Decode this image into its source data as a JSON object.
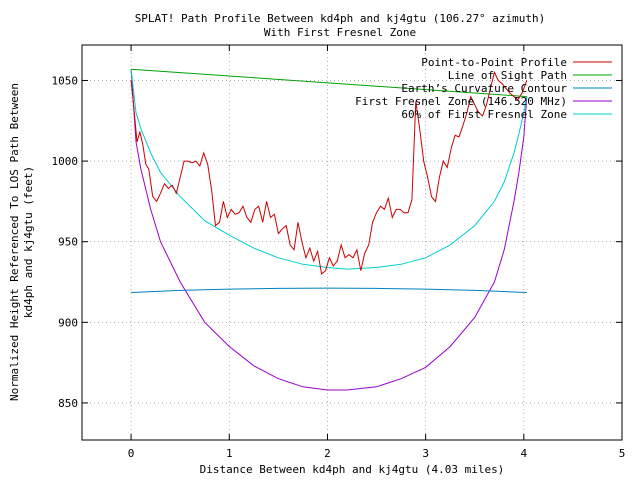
{
  "chart_data": {
    "type": "line",
    "title": "SPLAT! Path Profile Between kd4ph and kj4gtu (106.27° azimuth)",
    "subtitle": "With First Fresnel Zone",
    "xlabel": "Distance Between kd4ph and kj4gtu (4.03 miles)",
    "ylabel_lines": [
      "Normalized Height Referenced To LOS Path Between",
      "kd4ph and kj4gtu (feet)"
    ],
    "xlim": [
      -0.5,
      5
    ],
    "ylim": [
      827,
      1072
    ],
    "x_ticks": [
      0,
      1,
      2,
      3,
      4,
      5
    ],
    "y_ticks": [
      850,
      900,
      950,
      1000,
      1050
    ],
    "grid": true,
    "legend_position": "top-right",
    "series": [
      {
        "name": "Point-to-Point Profile",
        "color": "#cc0000",
        "x": [
          0,
          0.03,
          0.06,
          0.09,
          0.12,
          0.15,
          0.18,
          0.22,
          0.26,
          0.3,
          0.34,
          0.38,
          0.42,
          0.46,
          0.5,
          0.54,
          0.58,
          0.62,
          0.66,
          0.7,
          0.74,
          0.78,
          0.82,
          0.86,
          0.9,
          0.94,
          0.98,
          1.02,
          1.06,
          1.1,
          1.14,
          1.18,
          1.22,
          1.26,
          1.3,
          1.34,
          1.38,
          1.42,
          1.46,
          1.5,
          1.54,
          1.58,
          1.62,
          1.66,
          1.7,
          1.74,
          1.78,
          1.82,
          1.86,
          1.9,
          1.94,
          1.98,
          2.02,
          2.06,
          2.1,
          2.14,
          2.18,
          2.22,
          2.26,
          2.3,
          2.34,
          2.38,
          2.42,
          2.46,
          2.5,
          2.54,
          2.58,
          2.62,
          2.66,
          2.7,
          2.74,
          2.78,
          2.82,
          2.86,
          2.9,
          2.94,
          2.98,
          3.02,
          3.06,
          3.1,
          3.14,
          3.18,
          3.22,
          3.26,
          3.3,
          3.34,
          3.38,
          3.42,
          3.46,
          3.5,
          3.54,
          3.58,
          3.62,
          3.66,
          3.7,
          3.74,
          3.78,
          3.82,
          3.86,
          3.9,
          3.94,
          3.98,
          4.03
        ],
        "y": [
          1050,
          1032,
          1012,
          1018,
          1010,
          998,
          995,
          978,
          975,
          980,
          986,
          983,
          985,
          980,
          990,
          1000,
          1000,
          999,
          1000,
          997,
          1005,
          998,
          982,
          960,
          962,
          975,
          965,
          970,
          967,
          968,
          972,
          965,
          962,
          970,
          972,
          962,
          975,
          965,
          967,
          955,
          958,
          960,
          948,
          945,
          962,
          950,
          940,
          946,
          938,
          944,
          930,
          932,
          940,
          935,
          938,
          948,
          940,
          942,
          940,
          945,
          932,
          943,
          948,
          962,
          968,
          972,
          970,
          977,
          965,
          970,
          970,
          968,
          968,
          976,
          1037,
          1020,
          1000,
          990,
          978,
          975,
          990,
          1000,
          996,
          1008,
          1016,
          1015,
          1022,
          1030,
          1040,
          1035,
          1030,
          1028,
          1035,
          1045,
          1055,
          1050,
          1048,
          1045,
          1042,
          1040,
          1038,
          1042,
          1050
        ]
      },
      {
        "name": "Line of Sight Path",
        "color": "#00a000",
        "x": [
          0,
          4.03
        ],
        "y": [
          1057,
          1040
        ]
      },
      {
        "name": "Earth’s Curvature Contour",
        "color": "#0080c0",
        "x": [
          0,
          0.5,
          1,
          1.5,
          2,
          2.5,
          3,
          3.5,
          4.03
        ],
        "y": [
          918.5,
          919.8,
          920.6,
          921,
          921.2,
          921,
          920.6,
          919.8,
          918.5
        ]
      },
      {
        "name": "First Fresnel Zone (146.520 MHz)",
        "color": "#9900cc",
        "equation": "LOS - 200*sqrt(d(4.03-d))/4.03 (approx)",
        "x": [
          0,
          0.05,
          0.1,
          0.2,
          0.3,
          0.5,
          0.75,
          1,
          1.25,
          1.5,
          1.75,
          2,
          2.2,
          2.5,
          2.75,
          3,
          3.25,
          3.5,
          3.7,
          3.8,
          3.9,
          3.95,
          4.0,
          4.03
        ],
        "y": [
          1057,
          1012,
          995,
          970,
          950,
          925,
          900,
          885,
          873,
          865,
          860,
          858,
          858,
          860,
          865,
          872,
          885,
          903,
          925,
          945,
          975,
          993,
          1015,
          1040
        ]
      },
      {
        "name": "60% of First Fresnel Zone",
        "color": "#00cccc",
        "x": [
          0,
          0.05,
          0.1,
          0.2,
          0.3,
          0.5,
          0.75,
          1,
          1.25,
          1.5,
          1.75,
          2,
          2.2,
          2.5,
          2.75,
          3,
          3.25,
          3.5,
          3.7,
          3.8,
          3.9,
          3.95,
          4.0,
          4.03
        ],
        "y": [
          1057,
          1030,
          1020,
          1005,
          993,
          978,
          963,
          954,
          946,
          940,
          936,
          934,
          933,
          934,
          936,
          940,
          948,
          960,
          975,
          987,
          1005,
          1017,
          1030,
          1040
        ]
      }
    ]
  }
}
